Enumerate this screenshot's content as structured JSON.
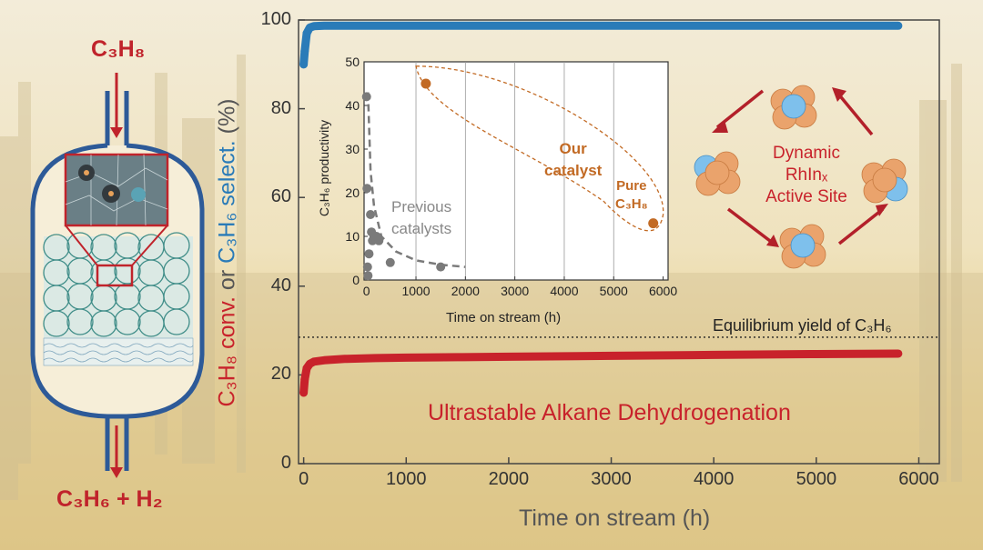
{
  "reactor": {
    "inlet_label": "C₃H₈",
    "outlet_label": "C₃H₆ + H₂"
  },
  "annotations": {
    "main_title": "Ultrastable Alkane Dehydrogenation",
    "equilibrium": "Equilibrium yield of C₃H₆",
    "our_catalyst": [
      "Our",
      "catalyst"
    ],
    "pure_feed": [
      "Pure",
      "C₃H₈"
    ],
    "previous": [
      "Previous",
      "catalysts"
    ],
    "active_site": [
      "Dynamic",
      "RhInₓ",
      "Active Site"
    ]
  },
  "colors": {
    "conversion": "#c8222b",
    "selectivity": "#2a7bb8",
    "our_catalyst": "#c26a24",
    "previous": "#7a7a7a",
    "rh_atom": "#7ec0ec",
    "in_atom": "#eaa36c"
  },
  "chart_data": [
    {
      "type": "line",
      "xlabel": "Time on stream (h)",
      "ylabel_parts": [
        "C₃H₈ conv.",
        " or ",
        "C₃H₆ select.",
        " (%)"
      ],
      "xlim": [
        -50,
        6200
      ],
      "ylim": [
        0,
        100
      ],
      "xticks": [
        0,
        1000,
        2000,
        3000,
        4000,
        5000,
        6000
      ],
      "yticks": [
        0,
        20,
        40,
        60,
        80,
        100
      ],
      "equilibrium_yield": 28.5,
      "series": [
        {
          "name": "C₃H₆ select.",
          "color": "#2a7bb8",
          "x": [
            0,
            10,
            30,
            60,
            100,
            200,
            400,
            1000,
            2000,
            3000,
            4000,
            5000,
            5800
          ],
          "y": [
            90,
            93,
            97,
            98.3,
            98.6,
            98.7,
            98.7,
            98.7,
            98.7,
            98.7,
            98.7,
            98.7,
            98.7
          ]
        },
        {
          "name": "C₃H₈ conv.",
          "color": "#c8222b",
          "x": [
            0,
            10,
            30,
            60,
            100,
            200,
            400,
            700,
            1000,
            1500,
            2000,
            3000,
            4000,
            5000,
            5800
          ],
          "y": [
            16,
            19,
            21.5,
            22.5,
            23,
            23.3,
            23.6,
            23.8,
            23.9,
            24,
            24.1,
            24.3,
            24.5,
            24.7,
            24.8
          ]
        }
      ]
    },
    {
      "type": "scatter",
      "xlabel": "Time on stream (h)",
      "ylabel": "C₃H₆ productivity",
      "xlim": [
        -50,
        6100
      ],
      "ylim": [
        0,
        50
      ],
      "xticks": [
        0,
        1000,
        2000,
        3000,
        4000,
        5000,
        6000
      ],
      "yticks": [
        0,
        10,
        20,
        30,
        40,
        50
      ],
      "grid": true,
      "series": [
        {
          "name": "Previous catalysts",
          "color": "#7a7a7a",
          "x": [
            0,
            10,
            20,
            30,
            50,
            80,
            100,
            120,
            150,
            200,
            250,
            480,
            1500
          ],
          "y": [
            42,
            21,
            3,
            1,
            6,
            15,
            11,
            9,
            10,
            10,
            9,
            4,
            3
          ]
        },
        {
          "name": "Our catalyst",
          "color": "#c26a24",
          "x": [
            1200,
            5800
          ],
          "y": [
            45,
            13
          ]
        }
      ]
    }
  ]
}
